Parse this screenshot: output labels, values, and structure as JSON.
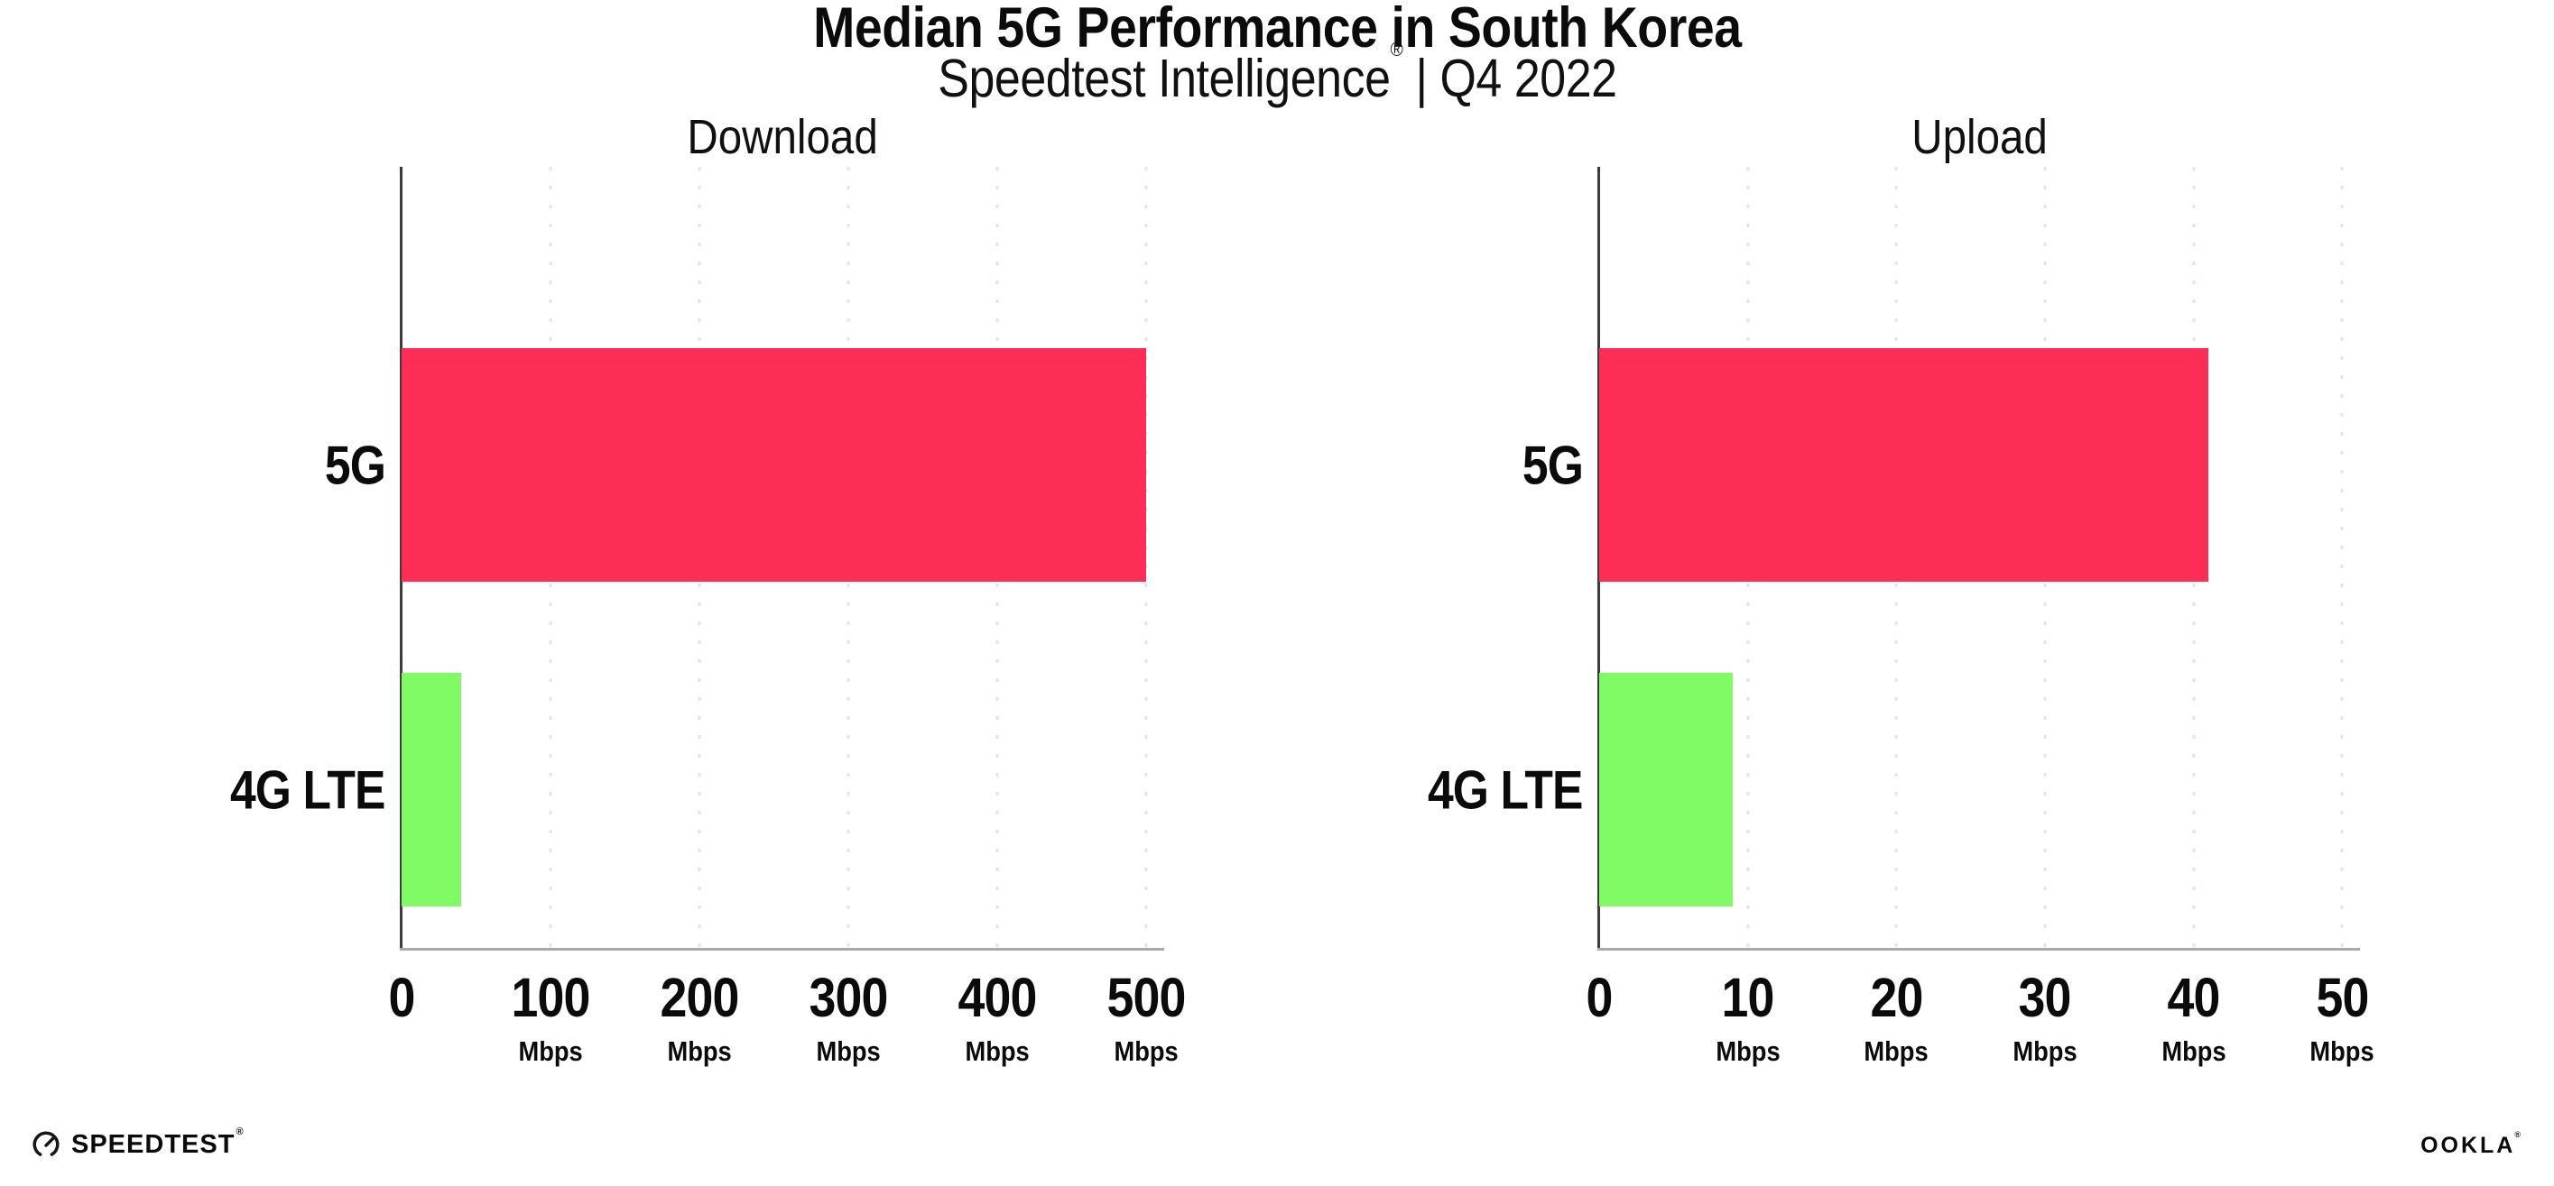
{
  "header": {
    "title": "Median 5G Performance in South Korea",
    "subtitle_brand": "Speedtest Intelligence",
    "subtitle_reg": "®",
    "subtitle_rest": "| Q4 2022"
  },
  "chart_data": [
    {
      "type": "bar",
      "orientation": "horizontal",
      "title": "Download",
      "categories": [
        "5G",
        "4G LTE"
      ],
      "values": [
        500,
        40
      ],
      "value_unit": "Mbps",
      "bar_colors": [
        "#fd2d55",
        "#80fb66"
      ],
      "xlim": [
        0,
        512
      ],
      "x_ticks": [
        0,
        100,
        200,
        300,
        400,
        500
      ],
      "x_tick_unit": "Mbps",
      "grid": "vertical-dotted",
      "legend": "none"
    },
    {
      "type": "bar",
      "orientation": "horizontal",
      "title": "Upload",
      "categories": [
        "5G",
        "4G LTE"
      ],
      "values": [
        41,
        9
      ],
      "value_unit": "Mbps",
      "bar_colors": [
        "#fd2d55",
        "#80fb66"
      ],
      "xlim": [
        0,
        51.2
      ],
      "x_ticks": [
        0,
        10,
        20,
        30,
        40,
        50
      ],
      "x_tick_unit": "Mbps",
      "grid": "vertical-dotted",
      "legend": "none"
    }
  ],
  "footer": {
    "speedtest_label": "SPEEDTEST",
    "speedtest_reg": "®",
    "ookla_label": "OOKLA",
    "ookla_reg": "®"
  }
}
